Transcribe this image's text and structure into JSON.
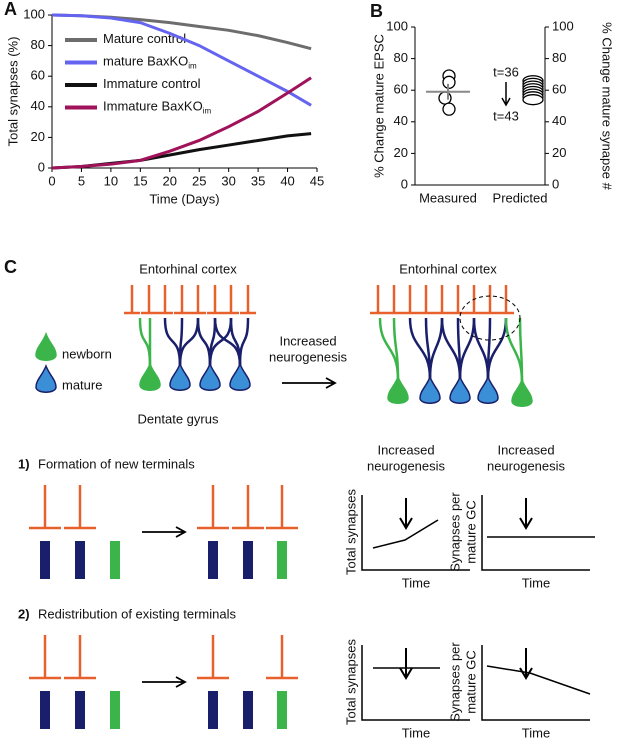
{
  "chart_data": [
    {
      "type": "line",
      "panel": "A",
      "xlabel": "Time (Days)",
      "ylabel": "Total synapses (%)",
      "x": [
        0,
        5,
        10,
        15,
        20,
        25,
        30,
        35,
        40,
        44
      ],
      "xlim": [
        0,
        45
      ],
      "xticks": [
        0,
        5,
        10,
        15,
        20,
        25,
        30,
        35,
        40,
        45
      ],
      "ylim": [
        0,
        100
      ],
      "yticks": [
        0,
        20,
        40,
        60,
        80,
        100
      ],
      "series": [
        {
          "name": "Mature control",
          "color": "#6d6d6d",
          "values": [
            100,
            99.5,
            98.5,
            97,
            95,
            92.5,
            90,
            86.5,
            82,
            78
          ]
        },
        {
          "name": "mature BaxKO",
          "name_subscript": "im",
          "color": "#6464f0",
          "values": [
            100,
            99.5,
            98,
            95,
            88,
            80,
            70,
            60,
            50,
            41
          ]
        },
        {
          "name": "Immature control",
          "color": "#111111",
          "values": [
            0,
            1,
            3,
            5,
            8.5,
            12,
            15,
            18,
            21,
            22.5
          ]
        },
        {
          "name": "Immature BaxKO",
          "name_subscript": "im",
          "color": "#a0135a",
          "values": [
            0,
            1,
            2.5,
            5,
            11,
            18,
            27,
            37,
            49,
            59
          ]
        }
      ]
    },
    {
      "type": "dot",
      "panel": "B",
      "categories": [
        "Measured",
        "Predicted"
      ],
      "ylabel": "% Change mature EPSC",
      "y2label": "% Change mature synapse #",
      "ylim": [
        0,
        100
      ],
      "yticks": [
        0,
        20,
        40,
        60,
        80,
        100
      ],
      "y2lim": [
        0,
        100
      ],
      "y2ticks": [
        0,
        20,
        40,
        60,
        80,
        100
      ],
      "groups": [
        {
          "values": [
            69,
            65,
            55,
            48
          ],
          "mean": 59,
          "error": 5
        },
        {
          "values": [
            66,
            64.3,
            62.6,
            60.9,
            59.2,
            57.5,
            55.8,
            54
          ]
        }
      ],
      "annotations": [
        "t=36",
        "t=43"
      ]
    }
  ],
  "panel_c": {
    "label": "C",
    "cortex": [
      "Entorhinal cortex",
      "Entorhinal cortex"
    ],
    "newborn": "newborn",
    "mature": "mature",
    "gyrus": "Dentate gyrus",
    "arrow": [
      "Increased",
      "neurogenesis"
    ],
    "rows": [
      {
        "num": "1)",
        "title": "Formation of new terminals"
      },
      {
        "num": "2)",
        "title": "Redistribution of existing terminals"
      }
    ],
    "headers": [
      [
        "Increased",
        "neurogenesis"
      ],
      [
        "Increased",
        "neurogenesis"
      ]
    ],
    "ylabels": [
      [
        "Total synapses"
      ],
      [
        "Synapses per",
        "mature GC"
      ],
      [
        "Total synapses"
      ],
      [
        "Synapses per",
        "mature GC"
      ]
    ],
    "xlabels": [
      "Time",
      "Time",
      "Time",
      "Time"
    ]
  }
}
